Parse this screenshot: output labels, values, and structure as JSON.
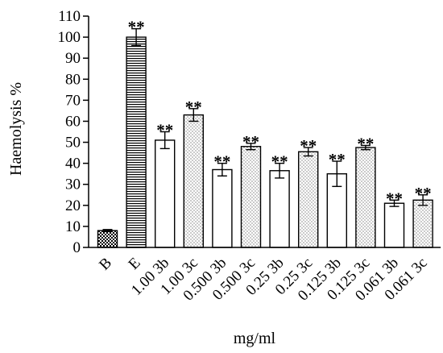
{
  "chart_data": {
    "type": "bar",
    "ylabel": "Haemolysis %",
    "xlabel": "mg/ml",
    "ylim": [
      0,
      110
    ],
    "yticks": [
      0,
      10,
      20,
      30,
      40,
      50,
      60,
      70,
      80,
      90,
      100,
      110
    ],
    "categories": [
      "B",
      "E",
      "1.00 3b",
      "1.00 3c",
      "0.500 3b",
      "0.500 3c",
      "0.25 3b",
      "0.25 3c",
      "0.125 3b",
      "0.125 3c",
      "0.061 3b",
      "0.061 3c"
    ],
    "values": [
      8,
      100,
      51,
      63,
      37,
      48,
      36.5,
      45.5,
      35,
      47.5,
      21,
      22.5
    ],
    "errors": [
      0.5,
      4,
      4,
      3,
      3,
      1.5,
      3.5,
      2,
      6,
      1,
      1.5,
      2.5
    ],
    "patterns": [
      "checker",
      "hlines",
      "none",
      "dots",
      "none",
      "dots",
      "none",
      "dots",
      "none",
      "dots",
      "none",
      "dots"
    ],
    "annotations": [
      "",
      "**",
      "**",
      "**",
      "**",
      "**",
      "**",
      "**",
      "**",
      "**",
      "**",
      "**"
    ],
    "grid": false,
    "legend": "none"
  }
}
